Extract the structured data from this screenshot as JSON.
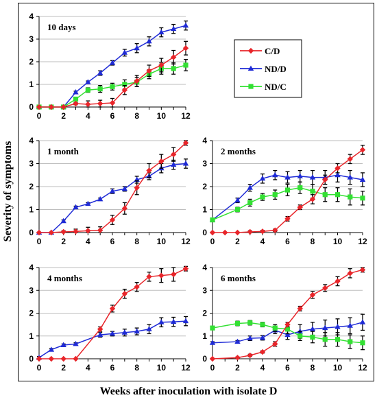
{
  "figure": {
    "ylabel": "Severity of symptoms",
    "xlabel": "Weeks after inoculation with isolate D"
  },
  "legend": {
    "entries": [
      {
        "name": "C/D",
        "color": "#e8252a",
        "marker": "diamond"
      },
      {
        "name": "ND/D",
        "color": "#1f2bd6",
        "marker": "triangle"
      },
      {
        "name": "ND/C",
        "color": "#33e033",
        "marker": "square"
      }
    ]
  },
  "chart_data": [
    {
      "type": "line",
      "title": "10 days",
      "xlim": [
        0,
        12
      ],
      "ylim": [
        0,
        4
      ],
      "xticks": [
        0,
        2,
        4,
        6,
        8,
        10,
        12
      ],
      "yticks": [
        0,
        1,
        2,
        3,
        4
      ],
      "series": [
        {
          "name": "C/D",
          "x": [
            0,
            1,
            2,
            3,
            4,
            5,
            6,
            7,
            8,
            9,
            10,
            11,
            12
          ],
          "y": [
            0,
            0,
            0,
            0.15,
            0.12,
            0.15,
            0.18,
            0.75,
            1.15,
            1.6,
            1.85,
            2.2,
            2.6
          ],
          "err": [
            0,
            0,
            0,
            0.05,
            0.15,
            0.15,
            0.2,
            0.2,
            0.25,
            0.25,
            0.3,
            0.3,
            0.3
          ]
        },
        {
          "name": "ND/D",
          "x": [
            0,
            1,
            2,
            3,
            4,
            5,
            6,
            7,
            8,
            9,
            10,
            11,
            12
          ],
          "y": [
            0,
            0,
            0,
            0.65,
            1.1,
            1.5,
            1.95,
            2.4,
            2.6,
            2.9,
            3.3,
            3.45,
            3.6
          ],
          "err": [
            0,
            0,
            0,
            0.05,
            0.05,
            0.1,
            0.1,
            0.15,
            0.2,
            0.2,
            0.2,
            0.2,
            0.2
          ]
        },
        {
          "name": "ND/C",
          "x": [
            0,
            1,
            2,
            3,
            4,
            5,
            6,
            7,
            8,
            9,
            10,
            11,
            12
          ],
          "y": [
            0,
            0,
            0,
            0.35,
            0.75,
            0.8,
            0.9,
            1.0,
            1.1,
            1.45,
            1.7,
            1.7,
            1.85
          ],
          "err": [
            0,
            0,
            0,
            0.05,
            0.1,
            0.15,
            0.15,
            0.2,
            0.2,
            0.2,
            0.25,
            0.25,
            0.25
          ]
        }
      ]
    },
    {
      "type": "line",
      "title": "1 month",
      "xlim": [
        0,
        12
      ],
      "ylim": [
        0,
        4
      ],
      "xticks": [
        0,
        2,
        4,
        6,
        8,
        10,
        12
      ],
      "yticks": [
        0,
        1,
        2,
        3,
        4
      ],
      "series": [
        {
          "name": "C/D",
          "x": [
            0,
            1,
            2,
            3,
            4,
            5,
            6,
            7,
            8,
            9,
            10,
            11,
            12
          ],
          "y": [
            0,
            0,
            0.03,
            0.05,
            0.08,
            0.1,
            0.55,
            1.05,
            1.95,
            2.7,
            3.1,
            3.4,
            3.9
          ],
          "err": [
            0,
            0,
            0.05,
            0.1,
            0.15,
            0.15,
            0.2,
            0.25,
            0.3,
            0.3,
            0.3,
            0.3,
            0.1
          ]
        },
        {
          "name": "ND/D",
          "x": [
            0,
            1,
            2,
            3,
            4,
            5,
            6,
            7,
            8,
            9,
            10,
            11,
            12
          ],
          "y": [
            0,
            0,
            0.5,
            1.1,
            1.25,
            1.45,
            1.8,
            1.9,
            2.3,
            2.45,
            2.8,
            2.95,
            3.0
          ],
          "err": [
            0,
            0,
            0.05,
            0.05,
            0.05,
            0.05,
            0.1,
            0.1,
            0.15,
            0.15,
            0.2,
            0.2,
            0.2
          ]
        }
      ]
    },
    {
      "type": "line",
      "title": "2 months",
      "xlim": [
        0,
        12
      ],
      "ylim": [
        0,
        4
      ],
      "xticks": [
        0,
        2,
        4,
        6,
        8,
        10,
        12
      ],
      "yticks": [
        0,
        1,
        2,
        3,
        4
      ],
      "series": [
        {
          "name": "C/D",
          "x": [
            0,
            1,
            2,
            3,
            4,
            5,
            6,
            7,
            8,
            9,
            10,
            11,
            12
          ],
          "y": [
            0,
            0,
            0,
            0.03,
            0.05,
            0.1,
            0.6,
            1.1,
            1.45,
            2.3,
            2.8,
            3.2,
            3.6
          ],
          "err": [
            0,
            0,
            0,
            0.05,
            0.05,
            0.05,
            0.1,
            0.1,
            0.2,
            0.2,
            0.2,
            0.2,
            0.2
          ]
        },
        {
          "name": "ND/D",
          "x": [
            0,
            2,
            3,
            4,
            5,
            6,
            7,
            8,
            9,
            10,
            11,
            12
          ],
          "y": [
            0.55,
            1.4,
            1.95,
            2.35,
            2.5,
            2.4,
            2.45,
            2.4,
            2.4,
            2.5,
            2.4,
            2.3
          ],
          "err": [
            0.05,
            0.1,
            0.15,
            0.2,
            0.2,
            0.25,
            0.25,
            0.3,
            0.3,
            0.3,
            0.3,
            0.3
          ]
        },
        {
          "name": "ND/C",
          "x": [
            0,
            2,
            3,
            4,
            5,
            6,
            7,
            8,
            9,
            10,
            11,
            12
          ],
          "y": [
            0.55,
            1.0,
            1.3,
            1.55,
            1.65,
            1.85,
            1.95,
            1.8,
            1.65,
            1.65,
            1.55,
            1.5
          ],
          "err": [
            0.05,
            0.1,
            0.15,
            0.15,
            0.2,
            0.25,
            0.25,
            0.3,
            0.3,
            0.3,
            0.35,
            0.3
          ]
        }
      ]
    },
    {
      "type": "line",
      "title": "4 months",
      "xlim": [
        0,
        12
      ],
      "ylim": [
        0,
        4
      ],
      "xticks": [
        0,
        2,
        4,
        6,
        8,
        10,
        12
      ],
      "yticks": [
        0,
        1,
        2,
        3,
        4
      ],
      "series": [
        {
          "name": "C/D",
          "x": [
            0,
            1,
            2,
            3,
            5,
            6,
            7,
            8,
            9,
            10,
            11,
            12
          ],
          "y": [
            0,
            0,
            0,
            0,
            1.3,
            2.2,
            2.85,
            3.15,
            3.6,
            3.65,
            3.7,
            3.95
          ],
          "err": [
            0,
            0,
            0,
            0,
            0.1,
            0.15,
            0.2,
            0.2,
            0.2,
            0.3,
            0.3,
            0.1
          ]
        },
        {
          "name": "ND/D",
          "x": [
            0,
            1,
            2,
            3,
            5,
            6,
            7,
            8,
            9,
            10,
            11,
            12
          ],
          "y": [
            0.05,
            0.4,
            0.6,
            0.65,
            1.05,
            1.1,
            1.15,
            1.2,
            1.3,
            1.6,
            1.62,
            1.65
          ],
          "err": [
            0.05,
            0.05,
            0.05,
            0.05,
            0.1,
            0.1,
            0.15,
            0.15,
            0.2,
            0.2,
            0.2,
            0.2
          ]
        }
      ]
    },
    {
      "type": "line",
      "title": "6 months",
      "xlim": [
        0,
        12
      ],
      "ylim": [
        0,
        4
      ],
      "xticks": [
        0,
        2,
        4,
        6,
        8,
        10,
        12
      ],
      "yticks": [
        0,
        1,
        2,
        3,
        4
      ],
      "series": [
        {
          "name": "C/D",
          "x": [
            0,
            2,
            3,
            4,
            5,
            6,
            7,
            8,
            9,
            10,
            11,
            12
          ],
          "y": [
            0,
            0.05,
            0.15,
            0.3,
            0.65,
            1.5,
            2.2,
            2.8,
            3.1,
            3.4,
            3.75,
            3.9
          ],
          "err": [
            0,
            0.03,
            0.05,
            0.05,
            0.1,
            0.1,
            0.1,
            0.15,
            0.15,
            0.2,
            0.2,
            0.1
          ]
        },
        {
          "name": "ND/D",
          "x": [
            0,
            2,
            3,
            4,
            5,
            6,
            7,
            8,
            9,
            10,
            11,
            12
          ],
          "y": [
            0.7,
            0.75,
            0.9,
            0.92,
            1.25,
            1.05,
            1.2,
            1.3,
            1.35,
            1.4,
            1.45,
            1.6
          ],
          "err": [
            0.05,
            0.05,
            0.1,
            0.1,
            0.15,
            0.2,
            0.3,
            0.3,
            0.35,
            0.35,
            0.35,
            0.35
          ]
        },
        {
          "name": "ND/C",
          "x": [
            0,
            2,
            3,
            4,
            5,
            6,
            7,
            8,
            9,
            10,
            11,
            12
          ],
          "y": [
            1.35,
            1.55,
            1.58,
            1.5,
            1.35,
            1.3,
            1.0,
            0.95,
            0.85,
            0.85,
            0.75,
            0.7
          ],
          "err": [
            0.05,
            0.1,
            0.1,
            0.1,
            0.15,
            0.2,
            0.2,
            0.25,
            0.3,
            0.3,
            0.3,
            0.3
          ]
        }
      ]
    }
  ]
}
